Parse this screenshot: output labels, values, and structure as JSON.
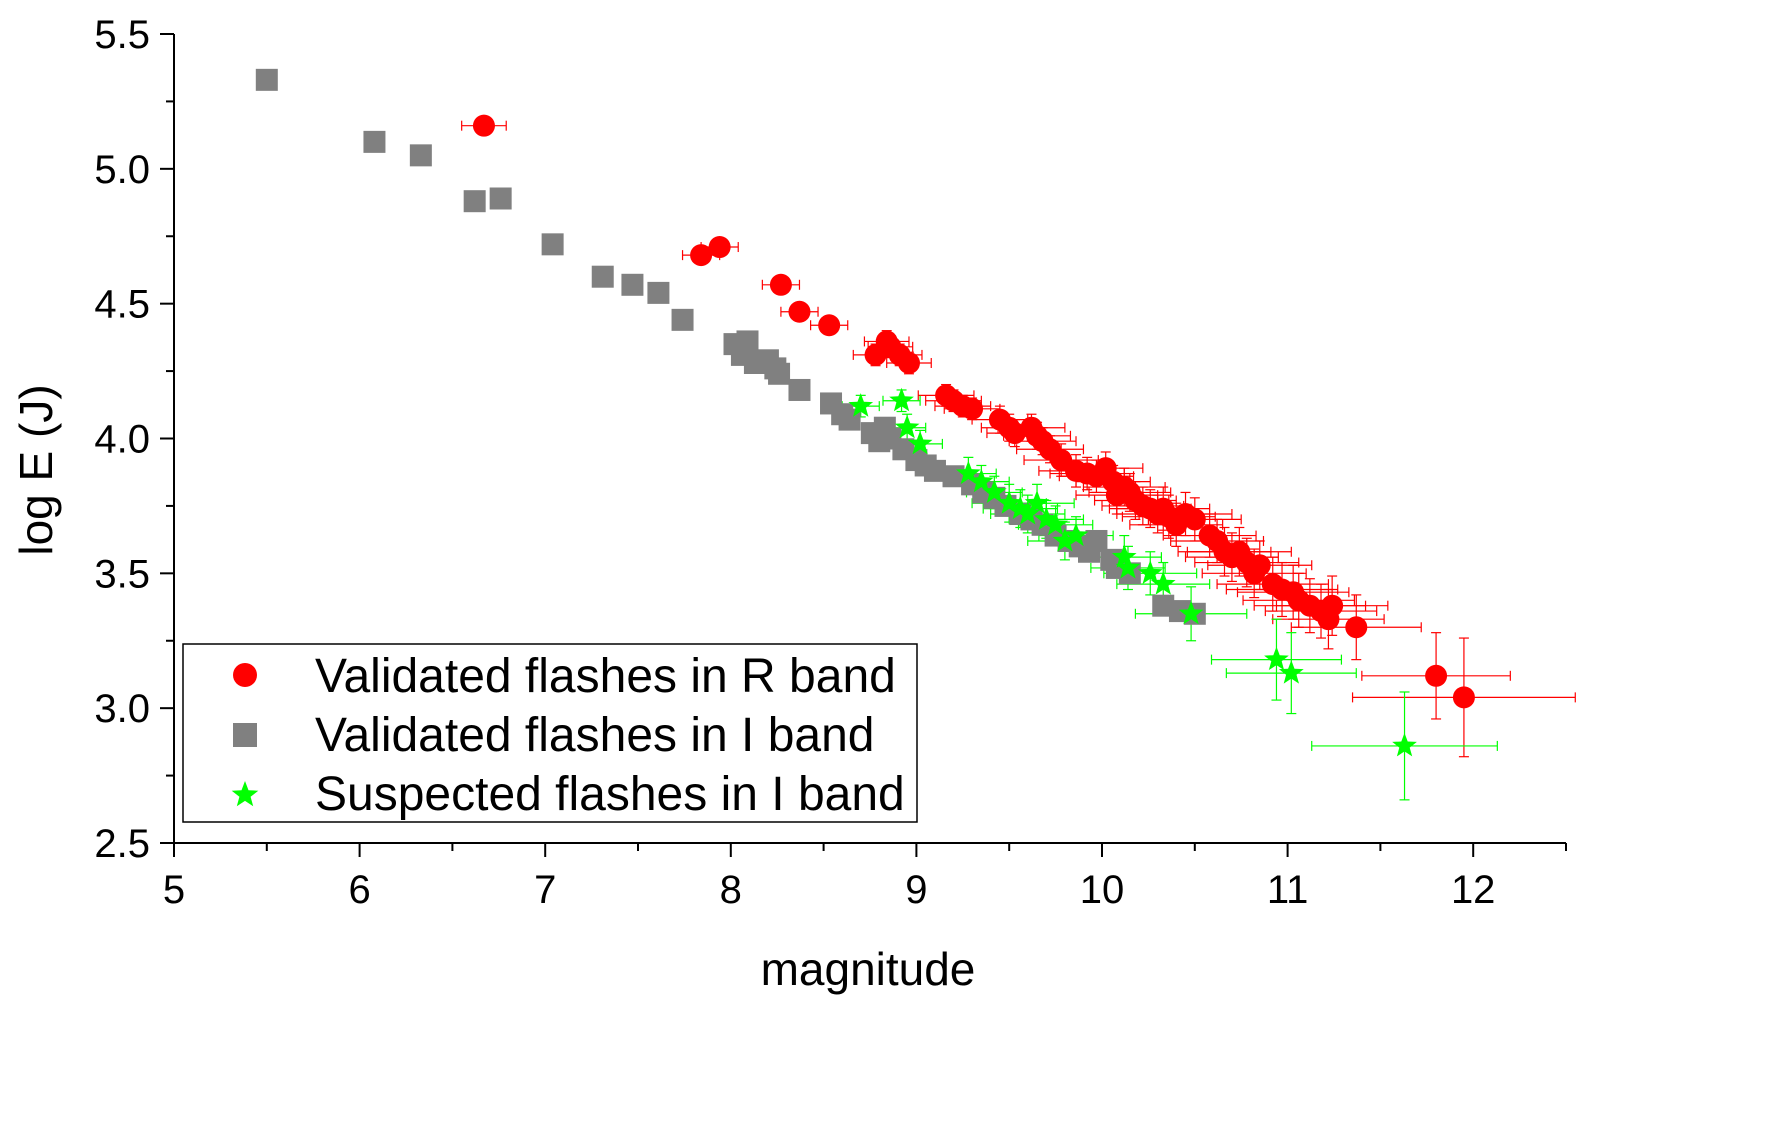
{
  "chart_data": {
    "type": "scatter",
    "title": "",
    "xlabel": "magnitude",
    "ylabel": "log E (J)",
    "xlim": [
      5,
      12.5
    ],
    "ylim": [
      2.5,
      5.5
    ],
    "x_ticks": [
      "5",
      "6",
      "7",
      "8",
      "9",
      "10",
      "11",
      "12"
    ],
    "y_ticks": [
      "2.5",
      "3.0",
      "3.5",
      "4.0",
      "4.5",
      "5.0",
      "5.5"
    ],
    "grid": false,
    "legend_position": "bottom-left",
    "series": [
      {
        "name": "Validated flashes in R band",
        "marker": "circle",
        "color": "#ff0000",
        "points": [
          [
            6.67,
            5.16,
            0.12,
            0.03
          ],
          [
            7.84,
            4.68,
            0.1,
            0.03
          ],
          [
            7.94,
            4.71,
            0.1,
            0.03
          ],
          [
            8.27,
            4.57,
            0.1,
            0.03
          ],
          [
            8.37,
            4.47,
            0.1,
            0.03
          ],
          [
            8.53,
            4.42,
            0.1,
            0.03
          ],
          [
            8.78,
            4.31,
            0.12,
            0.04
          ],
          [
            8.84,
            4.36,
            0.12,
            0.04
          ],
          [
            8.86,
            4.34,
            0.12,
            0.04
          ],
          [
            8.91,
            4.31,
            0.12,
            0.04
          ],
          [
            8.96,
            4.28,
            0.12,
            0.04
          ],
          [
            9.16,
            4.16,
            0.15,
            0.04
          ],
          [
            9.2,
            4.14,
            0.15,
            0.04
          ],
          [
            9.25,
            4.12,
            0.15,
            0.04
          ],
          [
            9.3,
            4.11,
            0.15,
            0.04
          ],
          [
            9.45,
            4.07,
            0.15,
            0.05
          ],
          [
            9.5,
            4.04,
            0.15,
            0.05
          ],
          [
            9.53,
            4.02,
            0.15,
            0.05
          ],
          [
            9.62,
            4.04,
            0.18,
            0.05
          ],
          [
            9.65,
            4.01,
            0.18,
            0.05
          ],
          [
            9.68,
            3.99,
            0.18,
            0.05
          ],
          [
            9.72,
            3.96,
            0.18,
            0.05
          ],
          [
            9.78,
            3.92,
            0.2,
            0.06
          ],
          [
            9.86,
            3.88,
            0.2,
            0.06
          ],
          [
            9.92,
            3.87,
            0.2,
            0.06
          ],
          [
            9.97,
            3.86,
            0.2,
            0.06
          ],
          [
            10.02,
            3.89,
            0.2,
            0.06
          ],
          [
            10.06,
            3.84,
            0.2,
            0.06
          ],
          [
            10.08,
            3.79,
            0.22,
            0.07
          ],
          [
            10.12,
            3.82,
            0.22,
            0.07
          ],
          [
            10.15,
            3.8,
            0.22,
            0.07
          ],
          [
            10.18,
            3.77,
            0.22,
            0.07
          ],
          [
            10.22,
            3.75,
            0.22,
            0.07
          ],
          [
            10.26,
            3.74,
            0.22,
            0.07
          ],
          [
            10.3,
            3.72,
            0.22,
            0.07
          ],
          [
            10.33,
            3.74,
            0.25,
            0.08
          ],
          [
            10.36,
            3.71,
            0.25,
            0.08
          ],
          [
            10.4,
            3.68,
            0.25,
            0.08
          ],
          [
            10.45,
            3.72,
            0.25,
            0.08
          ],
          [
            10.5,
            3.7,
            0.25,
            0.08
          ],
          [
            10.58,
            3.64,
            0.25,
            0.08
          ],
          [
            10.62,
            3.62,
            0.25,
            0.08
          ],
          [
            10.66,
            3.58,
            0.25,
            0.09
          ],
          [
            10.7,
            3.56,
            0.25,
            0.09
          ],
          [
            10.74,
            3.58,
            0.28,
            0.09
          ],
          [
            10.78,
            3.54,
            0.28,
            0.09
          ],
          [
            10.82,
            3.5,
            0.28,
            0.09
          ],
          [
            10.85,
            3.53,
            0.28,
            0.09
          ],
          [
            10.92,
            3.46,
            0.3,
            0.1
          ],
          [
            10.97,
            3.44,
            0.3,
            0.1
          ],
          [
            11.03,
            3.43,
            0.3,
            0.1
          ],
          [
            11.06,
            3.4,
            0.3,
            0.1
          ],
          [
            11.12,
            3.38,
            0.3,
            0.1
          ],
          [
            11.18,
            3.36,
            0.3,
            0.1
          ],
          [
            11.22,
            3.33,
            0.3,
            0.11
          ],
          [
            11.24,
            3.38,
            0.3,
            0.11
          ],
          [
            11.37,
            3.3,
            0.35,
            0.12
          ],
          [
            11.8,
            3.12,
            0.4,
            0.16
          ],
          [
            11.95,
            3.04,
            0.6,
            0.22
          ]
        ]
      },
      {
        "name": "Validated flashes in I band",
        "marker": "square",
        "color": "#808080",
        "points": [
          [
            5.5,
            5.33,
            0.05,
            0.02
          ],
          [
            6.08,
            5.1,
            0.05,
            0.02
          ],
          [
            6.33,
            5.05,
            0.05,
            0.02
          ],
          [
            6.62,
            4.88,
            0.05,
            0.02
          ],
          [
            6.76,
            4.89,
            0.05,
            0.02
          ],
          [
            7.04,
            4.72,
            0.05,
            0.02
          ],
          [
            7.31,
            4.6,
            0.05,
            0.02
          ],
          [
            7.47,
            4.57,
            0.05,
            0.02
          ],
          [
            7.61,
            4.54,
            0.05,
            0.02
          ],
          [
            7.74,
            4.44,
            0.05,
            0.02
          ],
          [
            8.02,
            4.35,
            0.05,
            0.02
          ],
          [
            8.06,
            4.31,
            0.05,
            0.02
          ],
          [
            8.09,
            4.36,
            0.05,
            0.02
          ],
          [
            8.13,
            4.28,
            0.05,
            0.02
          ],
          [
            8.2,
            4.29,
            0.05,
            0.02
          ],
          [
            8.24,
            4.26,
            0.05,
            0.02
          ],
          [
            8.26,
            4.24,
            0.05,
            0.02
          ],
          [
            8.37,
            4.18,
            0.05,
            0.02
          ],
          [
            8.54,
            4.13,
            0.05,
            0.02
          ],
          [
            8.6,
            4.09,
            0.05,
            0.02
          ],
          [
            8.64,
            4.07,
            0.05,
            0.02
          ],
          [
            8.76,
            4.02,
            0.05,
            0.02
          ],
          [
            8.8,
            3.99,
            0.05,
            0.02
          ],
          [
            8.83,
            4.04,
            0.05,
            0.02
          ],
          [
            8.86,
            4.0,
            0.05,
            0.02
          ],
          [
            8.93,
            3.96,
            0.05,
            0.02
          ],
          [
            9.0,
            3.92,
            0.05,
            0.02
          ],
          [
            9.05,
            3.9,
            0.05,
            0.02
          ],
          [
            9.1,
            3.88,
            0.05,
            0.02
          ],
          [
            9.2,
            3.86,
            0.05,
            0.02
          ],
          [
            9.3,
            3.83,
            0.05,
            0.02
          ],
          [
            9.36,
            3.8,
            0.05,
            0.02
          ],
          [
            9.42,
            3.78,
            0.05,
            0.02
          ],
          [
            9.48,
            3.75,
            0.05,
            0.02
          ],
          [
            9.56,
            3.72,
            0.05,
            0.02
          ],
          [
            9.62,
            3.7,
            0.05,
            0.02
          ],
          [
            9.68,
            3.68,
            0.05,
            0.02
          ],
          [
            9.75,
            3.64,
            0.05,
            0.02
          ],
          [
            9.82,
            3.62,
            0.05,
            0.02
          ],
          [
            9.88,
            3.6,
            0.05,
            0.02
          ],
          [
            9.93,
            3.58,
            0.05,
            0.02
          ],
          [
            9.97,
            3.62,
            0.05,
            0.02
          ],
          [
            10.05,
            3.55,
            0.05,
            0.02
          ],
          [
            10.08,
            3.52,
            0.05,
            0.02
          ],
          [
            10.15,
            3.5,
            0.05,
            0.02
          ],
          [
            10.33,
            3.38,
            0.05,
            0.02
          ],
          [
            10.42,
            3.36,
            0.05,
            0.02
          ],
          [
            10.5,
            3.35,
            0.05,
            0.02
          ]
        ]
      },
      {
        "name": "Suspected flashes in I band",
        "marker": "star",
        "color": "#00ff00",
        "points": [
          [
            8.7,
            4.12,
            0.1,
            0.04
          ],
          [
            8.92,
            4.14,
            0.1,
            0.04
          ],
          [
            8.95,
            4.04,
            0.1,
            0.05
          ],
          [
            9.02,
            3.98,
            0.12,
            0.05
          ],
          [
            9.28,
            3.87,
            0.15,
            0.06
          ],
          [
            9.35,
            3.84,
            0.15,
            0.06
          ],
          [
            9.42,
            3.8,
            0.15,
            0.06
          ],
          [
            9.5,
            3.76,
            0.2,
            0.07
          ],
          [
            9.56,
            3.74,
            0.2,
            0.07
          ],
          [
            9.6,
            3.72,
            0.2,
            0.07
          ],
          [
            9.65,
            3.76,
            0.2,
            0.07
          ],
          [
            9.7,
            3.7,
            0.2,
            0.07
          ],
          [
            9.75,
            3.68,
            0.2,
            0.07
          ],
          [
            9.8,
            3.62,
            0.2,
            0.07
          ],
          [
            9.86,
            3.64,
            0.2,
            0.07
          ],
          [
            10.12,
            3.56,
            0.2,
            0.08
          ],
          [
            10.14,
            3.52,
            0.2,
            0.08
          ],
          [
            10.26,
            3.5,
            0.25,
            0.08
          ],
          [
            10.33,
            3.46,
            0.25,
            0.08
          ],
          [
            10.48,
            3.35,
            0.3,
            0.1
          ],
          [
            10.94,
            3.18,
            0.35,
            0.15
          ],
          [
            11.02,
            3.13,
            0.35,
            0.15
          ],
          [
            11.63,
            2.86,
            0.5,
            0.2
          ]
        ]
      }
    ]
  }
}
